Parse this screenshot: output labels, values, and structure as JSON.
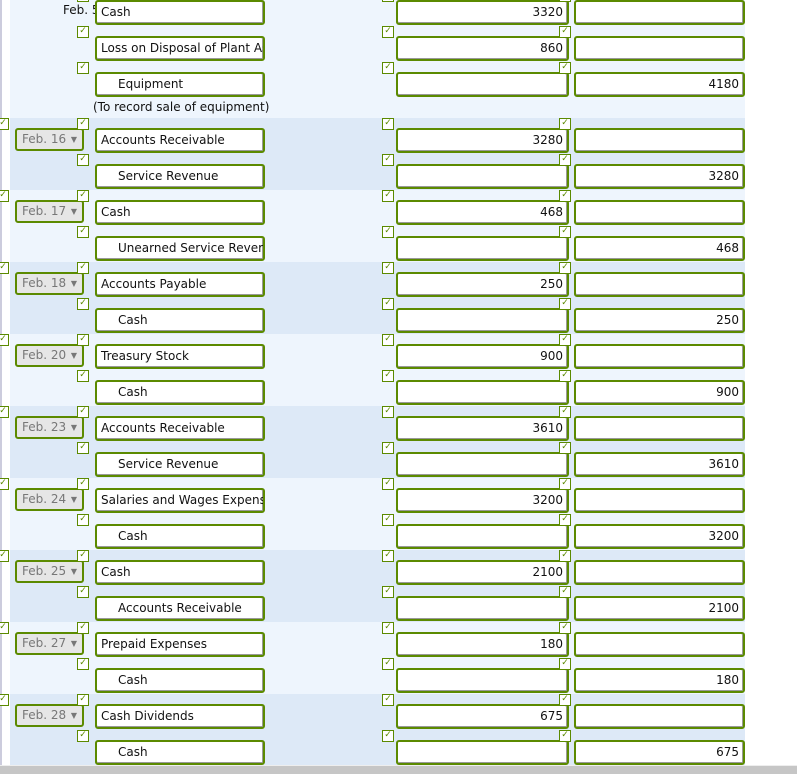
{
  "first_entry": {
    "date": "Feb. 5",
    "lines": [
      {
        "account": "Cash",
        "debit": "3320",
        "credit": "",
        "indent": false
      },
      {
        "account": "Loss on Disposal of Plant As",
        "debit": "860",
        "credit": "",
        "indent": false
      },
      {
        "account": "Equipment",
        "debit": "",
        "credit": "4180",
        "indent": true
      }
    ],
    "note": "(To record sale of equipment)"
  },
  "entries": [
    {
      "date": "Feb. 16",
      "lines": [
        {
          "account": "Accounts Receivable",
          "debit": "3280",
          "credit": ""
        },
        {
          "account": "Service Revenue",
          "debit": "",
          "credit": "3280"
        }
      ]
    },
    {
      "date": "Feb. 17",
      "lines": [
        {
          "account": "Cash",
          "debit": "468",
          "credit": ""
        },
        {
          "account": "Unearned Service Rever",
          "debit": "",
          "credit": "468"
        }
      ]
    },
    {
      "date": "Feb. 18",
      "lines": [
        {
          "account": "Accounts Payable",
          "debit": "250",
          "credit": ""
        },
        {
          "account": "Cash",
          "debit": "",
          "credit": "250"
        }
      ]
    },
    {
      "date": "Feb. 20",
      "lines": [
        {
          "account": "Treasury Stock",
          "debit": "900",
          "credit": ""
        },
        {
          "account": "Cash",
          "debit": "",
          "credit": "900"
        }
      ]
    },
    {
      "date": "Feb. 23",
      "lines": [
        {
          "account": "Accounts Receivable",
          "debit": "3610",
          "credit": ""
        },
        {
          "account": "Service Revenue",
          "debit": "",
          "credit": "3610"
        }
      ]
    },
    {
      "date": "Feb. 24",
      "lines": [
        {
          "account": "Salaries and Wages Expens",
          "debit": "3200",
          "credit": ""
        },
        {
          "account": "Cash",
          "debit": "",
          "credit": "3200"
        }
      ]
    },
    {
      "date": "Feb. 25",
      "lines": [
        {
          "account": "Cash",
          "debit": "2100",
          "credit": ""
        },
        {
          "account": "Accounts Receivable",
          "debit": "",
          "credit": "2100"
        }
      ]
    },
    {
      "date": "Feb. 27",
      "lines": [
        {
          "account": "Prepaid Expenses",
          "debit": "180",
          "credit": ""
        },
        {
          "account": "Cash",
          "debit": "",
          "credit": "180"
        }
      ]
    },
    {
      "date": "Feb. 28",
      "lines": [
        {
          "account": "Cash Dividends",
          "debit": "675",
          "credit": ""
        },
        {
          "account": "Cash",
          "debit": "",
          "credit": "675"
        }
      ]
    }
  ],
  "icons": {
    "check": "check-icon",
    "dropdown": "triangle-down-icon"
  },
  "colors": {
    "correct_border": "#5b8a00",
    "row_light": "#eef5fd",
    "row_dark": "#dde9f7"
  }
}
